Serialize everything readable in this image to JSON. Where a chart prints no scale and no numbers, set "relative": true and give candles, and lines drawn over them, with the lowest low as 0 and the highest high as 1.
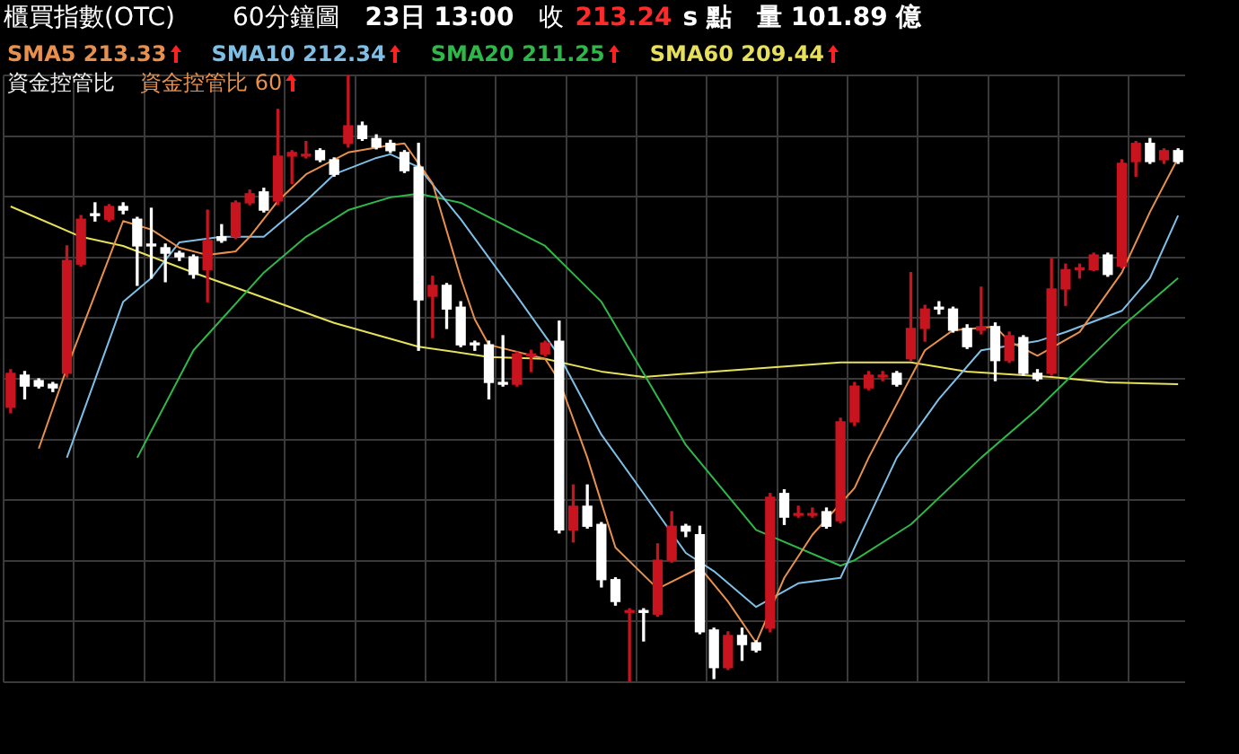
{
  "chart_data": {
    "type": "candlestick",
    "title": "櫃買指數(OTC)",
    "subtitle": "60分鐘圖",
    "relative": true,
    "grid": true,
    "legend": "top left",
    "categories": [
      null,
      null,
      null,
      null,
      null,
      null,
      null,
      null,
      null,
      null,
      null,
      null,
      null,
      null,
      null,
      null,
      null,
      null,
      null,
      null,
      null,
      null,
      null,
      null,
      null,
      null,
      null,
      null,
      null,
      null,
      null,
      null,
      null,
      null,
      null,
      null,
      null,
      null,
      null,
      null,
      null,
      null,
      null,
      null,
      null,
      null,
      null,
      null,
      null,
      null,
      null,
      null,
      null,
      null,
      null,
      null,
      null,
      null,
      null,
      null,
      null,
      null,
      null,
      null,
      null,
      null,
      null,
      null,
      null,
      null,
      null,
      null,
      null,
      null,
      null,
      null,
      null,
      null,
      null,
      null,
      null,
      null,
      null,
      null
    ],
    "ohlc": [
      [
        0.453,
        0.515,
        0.444,
        0.509
      ],
      [
        0.506,
        0.512,
        0.467,
        0.488
      ],
      [
        0.497,
        0.5,
        0.485,
        0.488
      ],
      [
        0.491,
        0.494,
        0.479,
        0.485
      ],
      [
        0.509,
        0.719,
        0.503,
        0.695
      ],
      [
        0.689,
        0.769,
        0.686,
        0.763
      ],
      [
        0.772,
        0.79,
        0.76,
        0.769
      ],
      [
        0.763,
        0.787,
        0.76,
        0.784
      ],
      [
        0.784,
        0.79,
        0.772,
        0.778
      ],
      [
        0.763,
        0.766,
        0.654,
        0.719
      ],
      [
        0.722,
        0.781,
        0.666,
        0.719
      ],
      [
        0.716,
        0.722,
        0.66,
        0.707
      ],
      [
        0.707,
        0.71,
        0.695,
        0.701
      ],
      [
        0.701,
        0.704,
        0.666,
        0.672
      ],
      [
        0.68,
        0.778,
        0.627,
        0.728
      ],
      [
        0.734,
        0.754,
        0.725,
        0.728
      ],
      [
        0.734,
        0.793,
        0.731,
        0.79
      ],
      [
        0.79,
        0.811,
        0.787,
        0.805
      ],
      [
        0.808,
        0.814,
        0.775,
        0.778
      ],
      [
        0.793,
        0.944,
        0.787,
        0.867
      ],
      [
        0.867,
        0.876,
        0.822,
        0.873
      ],
      [
        0.867,
        0.891,
        0.864,
        0.87
      ],
      [
        0.876,
        0.879,
        0.858,
        0.861
      ],
      [
        0.861,
        0.864,
        0.834,
        0.837
      ],
      [
        0.888,
        1,
        0.882,
        0.917
      ],
      [
        0.917,
        0.923,
        0.893,
        0.896
      ],
      [
        0.896,
        0.902,
        0.879,
        0.882
      ],
      [
        0.888,
        0.893,
        0.873,
        0.876
      ],
      [
        0.873,
        0.876,
        0.84,
        0.843
      ],
      [
        0.849,
        0.888,
        0.547,
        0.63
      ],
      [
        0.636,
        0.669,
        0.568,
        0.654
      ],
      [
        0.654,
        0.657,
        0.583,
        0.615
      ],
      [
        0.618,
        0.627,
        0.553,
        0.556
      ],
      [
        0.559,
        0.562,
        0.547,
        0.556
      ],
      [
        0.556,
        0.562,
        0.467,
        0.494
      ],
      [
        0.494,
        0.571,
        0.488,
        0.491
      ],
      [
        0.491,
        0.544,
        0.488,
        0.541
      ],
      [
        0.538,
        0.547,
        0.512,
        0.541
      ],
      [
        0.541,
        0.562,
        0.538,
        0.559
      ],
      [
        0.562,
        0.595,
        0.246,
        0.251
      ],
      [
        0.251,
        0.325,
        0.231,
        0.29
      ],
      [
        0.29,
        0.325,
        0.254,
        0.257
      ],
      [
        0.26,
        0.263,
        0.157,
        0.169
      ],
      [
        0.169,
        0.172,
        0.127,
        0.133
      ],
      [
        0.115,
        0.121,
        0,
        0.118
      ],
      [
        0.118,
        0.121,
        0.068,
        0.115
      ],
      [
        0.112,
        0.228,
        0.109,
        0.201
      ],
      [
        0.201,
        0.281,
        0.198,
        0.257
      ],
      [
        0.257,
        0.26,
        0.24,
        0.249
      ],
      [
        0.243,
        0.257,
        0.08,
        0.083
      ],
      [
        0.086,
        0.089,
        0.006,
        0.024
      ],
      [
        0.024,
        0.083,
        0.021,
        0.077
      ],
      [
        0.077,
        0.089,
        0.036,
        0.062
      ],
      [
        0.065,
        0.068,
        0.05,
        0.053
      ],
      [
        0.089,
        0.311,
        0.083,
        0.305
      ],
      [
        0.311,
        0.317,
        0.26,
        0.272
      ],
      [
        0.275,
        0.29,
        0.272,
        0.278
      ],
      [
        0.275,
        0.287,
        0.272,
        0.278
      ],
      [
        0.281,
        0.287,
        0.254,
        0.257
      ],
      [
        0.266,
        0.435,
        0.263,
        0.429
      ],
      [
        0.429,
        0.494,
        0.423,
        0.488
      ],
      [
        0.485,
        0.512,
        0.482,
        0.506
      ],
      [
        0.503,
        0.512,
        0.497,
        0.506
      ],
      [
        0.509,
        0.512,
        0.488,
        0.491
      ],
      [
        0.533,
        0.675,
        0.53,
        0.583
      ],
      [
        0.583,
        0.621,
        0.562,
        0.615
      ],
      [
        0.618,
        0.627,
        0.607,
        0.615
      ],
      [
        0.615,
        0.618,
        0.577,
        0.58
      ],
      [
        0.583,
        0.589,
        0.55,
        0.553
      ],
      [
        0.58,
        0.651,
        0.574,
        0.586
      ],
      [
        0.586,
        0.592,
        0.497,
        0.53
      ],
      [
        0.53,
        0.577,
        0.527,
        0.571
      ],
      [
        0.568,
        0.571,
        0.506,
        0.509
      ],
      [
        0.509,
        0.515,
        0.497,
        0.5
      ],
      [
        0.509,
        0.698,
        0.506,
        0.648
      ],
      [
        0.648,
        0.689,
        0.621,
        0.68
      ],
      [
        0.68,
        0.689,
        0.666,
        0.683
      ],
      [
        0.68,
        0.707,
        0.678,
        0.704
      ],
      [
        0.704,
        0.707,
        0.669,
        0.672
      ],
      [
        0.686,
        0.861,
        0.683,
        0.855
      ],
      [
        0.858,
        0.891,
        0.834,
        0.888
      ],
      [
        0.888,
        0.896,
        0.855,
        0.858
      ],
      [
        0.861,
        0.879,
        0.855,
        0.876
      ],
      [
        0.876,
        0.879,
        0.855,
        0.858
      ]
    ],
    "series": [
      {
        "name": "SMA5",
        "type": "line",
        "color": "#e8904c",
        "values": [
          null,
          null,
          0.385,
          null,
          0.518,
          null,
          null,
          null,
          0.76,
          null,
          0.746,
          null,
          0.716,
          null,
          0.704,
          null,
          0.71,
          0.734,
          null,
          0.793,
          null,
          0.837,
          null,
          null,
          0.873,
          null,
          null,
          0.885,
          0.888,
          null,
          0.822,
          null,
          0.666,
          0.598,
          0.556,
          null,
          null,
          null,
          0.533,
          0.497,
          null,
          0.37,
          null,
          0.222,
          null,
          null,
          0.154,
          null,
          null,
          0.189,
          null,
          0.133,
          null,
          0.065,
          null,
          0.172,
          null,
          0.243,
          null,
          null,
          0.32,
          0.37,
          null,
          null,
          null,
          0.547,
          null,
          0.58,
          null,
          null,
          0.586,
          0.562,
          null,
          0.538,
          null,
          null,
          0.577,
          null,
          null,
          0.675,
          null,
          0.775,
          null,
          0.864
        ]
      },
      {
        "name": "SMA10",
        "type": "line",
        "color": "#7fbfe6",
        "values": [
          null,
          null,
          null,
          null,
          0.37,
          null,
          null,
          null,
          0.627,
          null,
          0.666,
          null,
          0.725,
          null,
          null,
          0.734,
          null,
          null,
          0.734,
          null,
          null,
          0.793,
          null,
          0.837,
          null,
          null,
          0.864,
          0.87,
          null,
          0.849,
          null,
          null,
          0.763,
          null,
          null,
          null,
          0.636,
          null,
          null,
          0.538,
          null,
          null,
          0.408,
          null,
          null,
          0.311,
          null,
          null,
          0.213,
          null,
          0.183,
          null,
          null,
          0.124,
          null,
          null,
          0.163,
          null,
          null,
          0.172,
          0.222,
          null,
          null,
          0.37,
          null,
          null,
          0.467,
          null,
          null,
          0.547,
          null,
          null,
          null,
          0.562,
          null,
          0.577,
          null,
          null,
          null,
          0.612,
          null,
          0.666,
          null,
          0.769
        ]
      },
      {
        "name": "SMA20",
        "type": "line",
        "color": "#2fb84a",
        "values": [
          null,
          null,
          null,
          null,
          null,
          null,
          null,
          null,
          null,
          0.37,
          null,
          null,
          null,
          0.547,
          null,
          null,
          null,
          null,
          0.675,
          null,
          null,
          0.734,
          null,
          null,
          0.778,
          null,
          null,
          0.799,
          null,
          0.805,
          null,
          null,
          0.79,
          null,
          null,
          null,
          null,
          null,
          0.719,
          null,
          null,
          null,
          0.627,
          null,
          null,
          0.509,
          null,
          null,
          0.391,
          null,
          null,
          null,
          null,
          0.251,
          null,
          null,
          null,
          null,
          null,
          0.192,
          0.201,
          null,
          null,
          null,
          0.26,
          null,
          null,
          null,
          null,
          0.37,
          null,
          null,
          null,
          0.45,
          null,
          null,
          null,
          null,
          null,
          0.586,
          null,
          null,
          null,
          0.666
        ]
      },
      {
        "name": "SMA60",
        "type": "line",
        "color": "#e6e05a",
        "values": [
          0.784,
          null,
          null,
          null,
          null,
          0.734,
          null,
          null,
          0.719,
          null,
          null,
          null,
          null,
          0.675,
          null,
          null,
          null,
          0.642,
          null,
          null,
          null,
          null,
          null,
          0.592,
          null,
          null,
          null,
          null,
          null,
          0.553,
          null,
          null,
          null,
          null,
          0.536,
          null,
          null,
          null,
          0.533,
          null,
          null,
          null,
          0.512,
          null,
          null,
          0.503,
          null,
          null,
          null,
          null,
          0.512,
          null,
          null,
          null,
          null,
          null,
          null,
          null,
          null,
          0.527,
          null,
          null,
          null,
          null,
          0.527,
          null,
          null,
          null,
          0.512,
          null,
          null,
          null,
          null,
          null,
          0.503,
          null,
          null,
          null,
          0.494,
          null,
          null,
          null,
          null,
          0.491
        ]
      }
    ],
    "annotations": [
      "23日 13:00",
      "收",
      "213.24",
      "s 點",
      "量 101.89 億",
      "213.33",
      "212.34",
      "211.25",
      "209.44",
      "資金控管比",
      "資金控管比 60"
    ]
  }
}
